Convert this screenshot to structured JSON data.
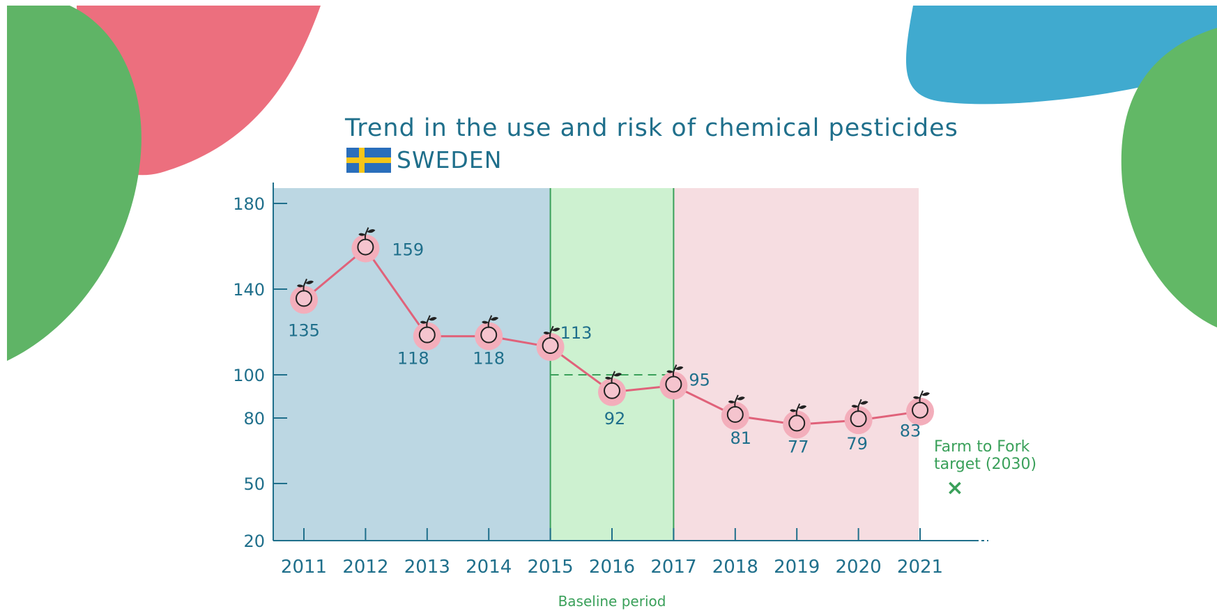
{
  "title": "Trend in the use and risk of chemical pesticides",
  "country": "SWEDEN",
  "colors": {
    "text": "#1f6f8b",
    "line": "#e0627a",
    "period1": "#bcd7e3",
    "baseline": "#cdf1d0",
    "period3": "#f6dde1",
    "green": "#3aa05a"
  },
  "chart_data": {
    "type": "line",
    "title": "Trend in the use and risk of chemical pesticides",
    "x": [
      2011,
      2012,
      2013,
      2014,
      2015,
      2016,
      2017,
      2018,
      2019,
      2020,
      2021
    ],
    "x_tick_labels": [
      "2011",
      "2012",
      "2013",
      "2014",
      "2015",
      "2016",
      "2017",
      "2018",
      "2019",
      "2020",
      "2021"
    ],
    "series": [
      {
        "values": [
          135,
          159,
          118,
          118,
          113,
          92,
          95,
          81,
          77,
          79,
          83
        ],
        "labels": [
          "135",
          "159",
          "118",
          "118",
          "113",
          "92",
          "95",
          "81",
          "77",
          "79",
          "83"
        ]
      }
    ],
    "y_ticks": [
      20,
      50,
      80,
      100,
      140,
      180
    ],
    "y_tick_labels": [
      "20",
      "50",
      "80",
      "100",
      "140",
      "180"
    ],
    "ylim": [
      20,
      190
    ],
    "baseline_level": 100,
    "baseline_period": [
      2015,
      2017
    ],
    "baseline_label": "Baseline period",
    "target_label_line1": "Farm to Fork",
    "target_label_line2": "target (2030)",
    "target_marker": "×"
  }
}
